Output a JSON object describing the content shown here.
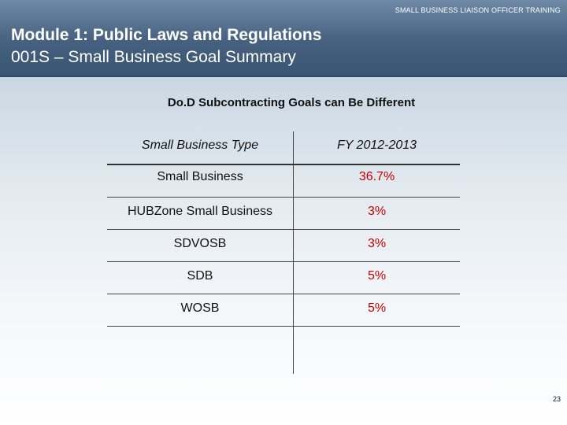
{
  "header": {
    "top_label": "SMALL BUSINESS LIAISON OFFICER TRAINING",
    "title": "Module 1: Public Laws and Regulations",
    "subtitle": "001S – Small Business Goal Summary"
  },
  "table": {
    "heading": "Do.D Subcontracting Goals can Be Different",
    "columns": [
      "Small Business Type",
      "FY 2012-2013"
    ],
    "rows": [
      {
        "type": "Small Business",
        "goal": "36.7%"
      },
      {
        "type": "HUBZone Small Business",
        "goal": "3%"
      },
      {
        "type": "SDVOSB",
        "goal": "3%"
      },
      {
        "type": "SDB",
        "goal": "5%"
      },
      {
        "type": "WOSB",
        "goal": "5%"
      }
    ]
  },
  "page_number": "23",
  "colors": {
    "header_bg": "#46617f",
    "goal_text": "#c00000"
  }
}
